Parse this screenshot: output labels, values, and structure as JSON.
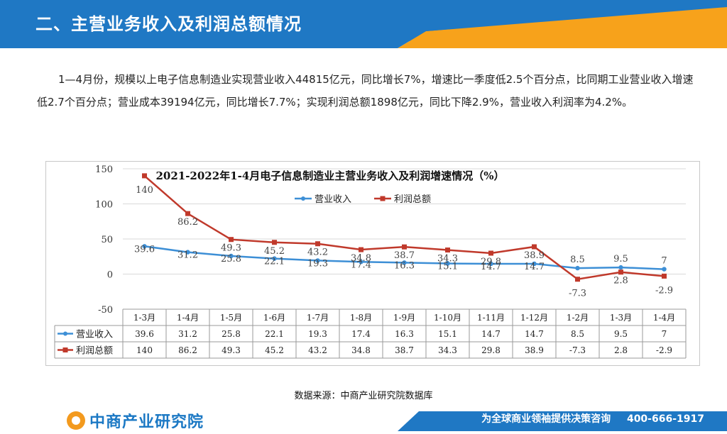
{
  "header": {
    "title": "二、主营业务收入及利润总额情况"
  },
  "body_text": "1—4月份，规模以上电子信息制造业实现营业收入44815亿元，同比增长7%，增速比一季度低2.5个百分点，比同期工业营业收入增速低2.7个百分点；营业成本39194亿元，同比增长7.7%；实现利润总额1898亿元，同比下降2.9%，营业收入利润率为4.2%。",
  "colors": {
    "header_blue": "#1f78c4",
    "header_orange": "#f7a21b",
    "revenue": "#3d8fd6",
    "profit": "#c0392b"
  },
  "chart_data": {
    "type": "line",
    "title": "2021-2022年1-4月电子信息制造业主营业务收入及利润增速情况（%）",
    "categories": [
      "1-3月",
      "1-4月",
      "1-5月",
      "1-6月",
      "1-7月",
      "1-8月",
      "1-9月",
      "1-10月",
      "1-11月",
      "1-12月",
      "1-2月",
      "1-3月",
      "1-4月"
    ],
    "series": [
      {
        "name": "营业收入",
        "values": [
          39.6,
          31.2,
          25.8,
          22.1,
          19.3,
          17.4,
          16.3,
          15.1,
          14.7,
          14.7,
          8.5,
          9.5,
          7
        ],
        "labels": [
          "39.6",
          "31.2",
          "25.8",
          "22.1",
          "19.3",
          "17.4",
          "16.3",
          "15.1",
          "14.7",
          "14.7",
          "8.5",
          "9.5",
          "7"
        ],
        "color": "#3d8fd6",
        "marker": "circle"
      },
      {
        "name": "利润总额",
        "values": [
          140,
          86.2,
          49.3,
          45.2,
          43.2,
          34.8,
          38.7,
          34.3,
          29.8,
          38.9,
          -7.3,
          2.8,
          -2.9
        ],
        "labels": [
          "140",
          "86.2",
          "49.3",
          "45.2",
          "43.2",
          "34.8",
          "38.7",
          "34.3",
          "29.8",
          "38.9",
          "-7.3",
          "2.8",
          "-2.9"
        ],
        "color": "#c0392b",
        "marker": "square"
      }
    ],
    "ylim": [
      -50,
      150
    ],
    "yticks": [
      "150",
      "100",
      "50",
      "0",
      "-50"
    ],
    "ytick_values": [
      150,
      100,
      50,
      0,
      -50
    ],
    "grid": true,
    "legend": "top-center",
    "data_table": true
  },
  "source": "数据来源：中商产业研究院数据库",
  "footer": {
    "logo_text": "中商产业研究院",
    "slogan": "为全球商业领袖提供决策咨询",
    "phone": "400-666-1917"
  }
}
